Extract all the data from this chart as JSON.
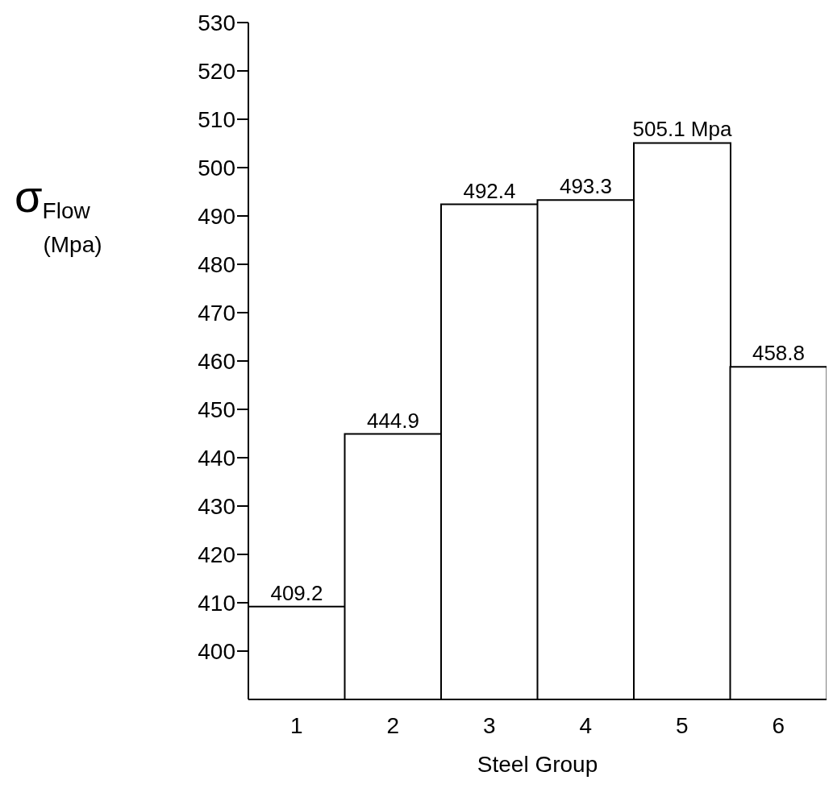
{
  "chart_data": {
    "type": "bar",
    "xlabel": "Steel Group",
    "ylabel": "σ$_{Flow}$ (Mpa)",
    "categories": [
      "1",
      "2",
      "3",
      "4",
      "5",
      "6"
    ],
    "values": [
      409.2,
      444.9,
      492.4,
      493.3,
      505.1,
      458.8
    ],
    "value_labels": [
      "409.2",
      "444.9",
      "492.4",
      "493.3",
      "505.1 Mpa",
      "458.8"
    ],
    "color": "#ffffff",
    "ylim": [
      390,
      530
    ],
    "yticks": [
      400,
      410,
      420,
      430,
      440,
      450,
      460,
      470,
      480,
      490,
      500,
      510,
      520,
      530
    ],
    "grid": false,
    "legend": false
  }
}
